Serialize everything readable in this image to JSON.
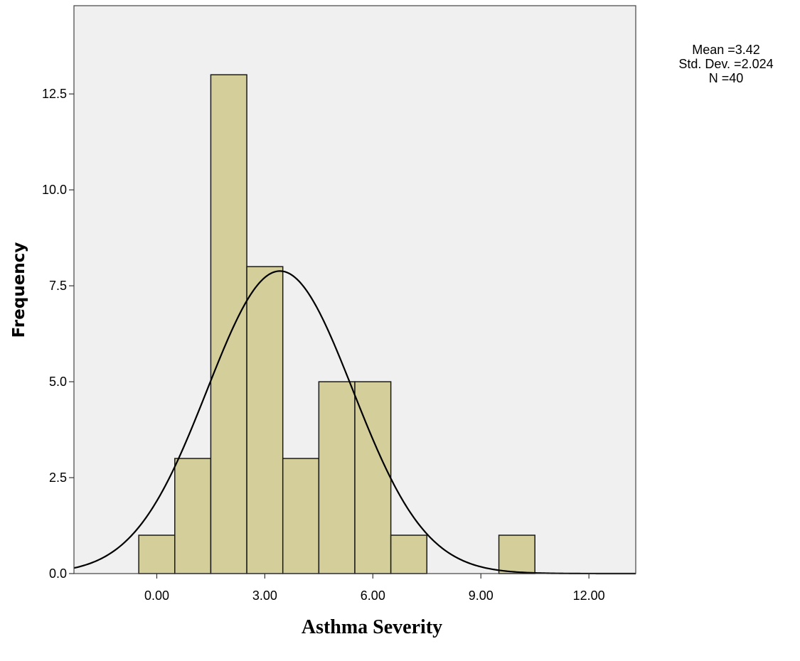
{
  "chart_data": {
    "type": "bar",
    "xlabel": "Asthma Severity",
    "ylabel": "Frequency",
    "bins": [
      {
        "x": 0,
        "count": 1
      },
      {
        "x": 1,
        "count": 3
      },
      {
        "x": 2,
        "count": 13
      },
      {
        "x": 3,
        "count": 8
      },
      {
        "x": 4,
        "count": 3
      },
      {
        "x": 5,
        "count": 5
      },
      {
        "x": 6,
        "count": 5
      },
      {
        "x": 7,
        "count": 1
      },
      {
        "x": 10,
        "count": 1
      }
    ],
    "bin_width": 1,
    "xlim": [
      -2.3,
      13.3
    ],
    "ylim": [
      0,
      14.8
    ],
    "x_ticks": [
      {
        "value": 0,
        "label": "0.00"
      },
      {
        "value": 3,
        "label": "3.00"
      },
      {
        "value": 6,
        "label": "6.00"
      },
      {
        "value": 9,
        "label": "9.00"
      },
      {
        "value": 12,
        "label": "12.00"
      }
    ],
    "y_ticks": [
      {
        "value": 0,
        "label": "0.0"
      },
      {
        "value": 2.5,
        "label": "2.5"
      },
      {
        "value": 5,
        "label": "5.0"
      },
      {
        "value": 7.5,
        "label": "7.5"
      },
      {
        "value": 10,
        "label": "10.0"
      },
      {
        "value": 12.5,
        "label": "12.5"
      }
    ],
    "normal_curve": {
      "mean": 3.42,
      "sd": 2.024,
      "n": 40
    },
    "stats": {
      "mean": "Mean =3.42",
      "sd": "Std. Dev. =2.024",
      "n": "N =40"
    },
    "colors": {
      "plot_bg": "#f0f0f0",
      "bar_fill": "#d3ce9a",
      "bar_stroke": "#1a1a1a",
      "curve": "#000000"
    },
    "grid": false
  }
}
